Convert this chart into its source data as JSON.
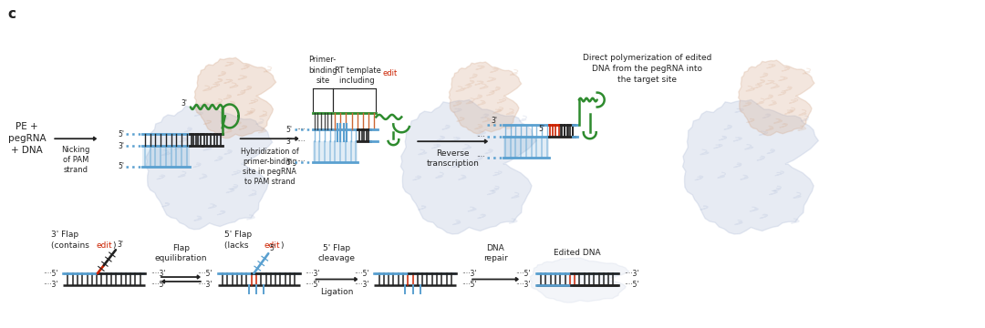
{
  "bg_color": "#ffffff",
  "black": "#222222",
  "red": "#cc2200",
  "blue": "#5aa0d0",
  "blue_dark": "#2266aa",
  "green": "#2e8b2e",
  "gray_protein": "#b0bdd8",
  "tan_protein": "#d4a88a",
  "label_c": "c",
  "text_PE": "PE +\npegRNA\n+ DNA",
  "arrow0_label": "Nicking\nof PAM\nstrand",
  "arrow1_label": "Hybridization of\nprimer-binding\nsite in pegRNA\nto PAM strand",
  "arrow2_label": "Reverse\ntranscription",
  "arrow3_label": "Direct polymerization of edited\nDNA from the pegRNA into\nthe target site",
  "label_primer": "Primer-\nbinding\nsite",
  "label_rt": "RT template\nincluding ",
  "label_edit_red": "edit",
  "label_flap3": "3' Flap\n(contains ",
  "label_flap3_edit": "edit",
  "label_flap3_close": ")",
  "label_flap5": "5' Flap\n(lacks ",
  "label_flap5_edit": "edit",
  "label_flap5_close": ")",
  "arrow_flap_eq": "Flap\nequilibration",
  "arrow_cleavage": "5' Flap\ncleavage",
  "arrow_ligation": "Ligation",
  "arrow_repair": "DNA\nrepair",
  "label_edited": "Edited DNA"
}
